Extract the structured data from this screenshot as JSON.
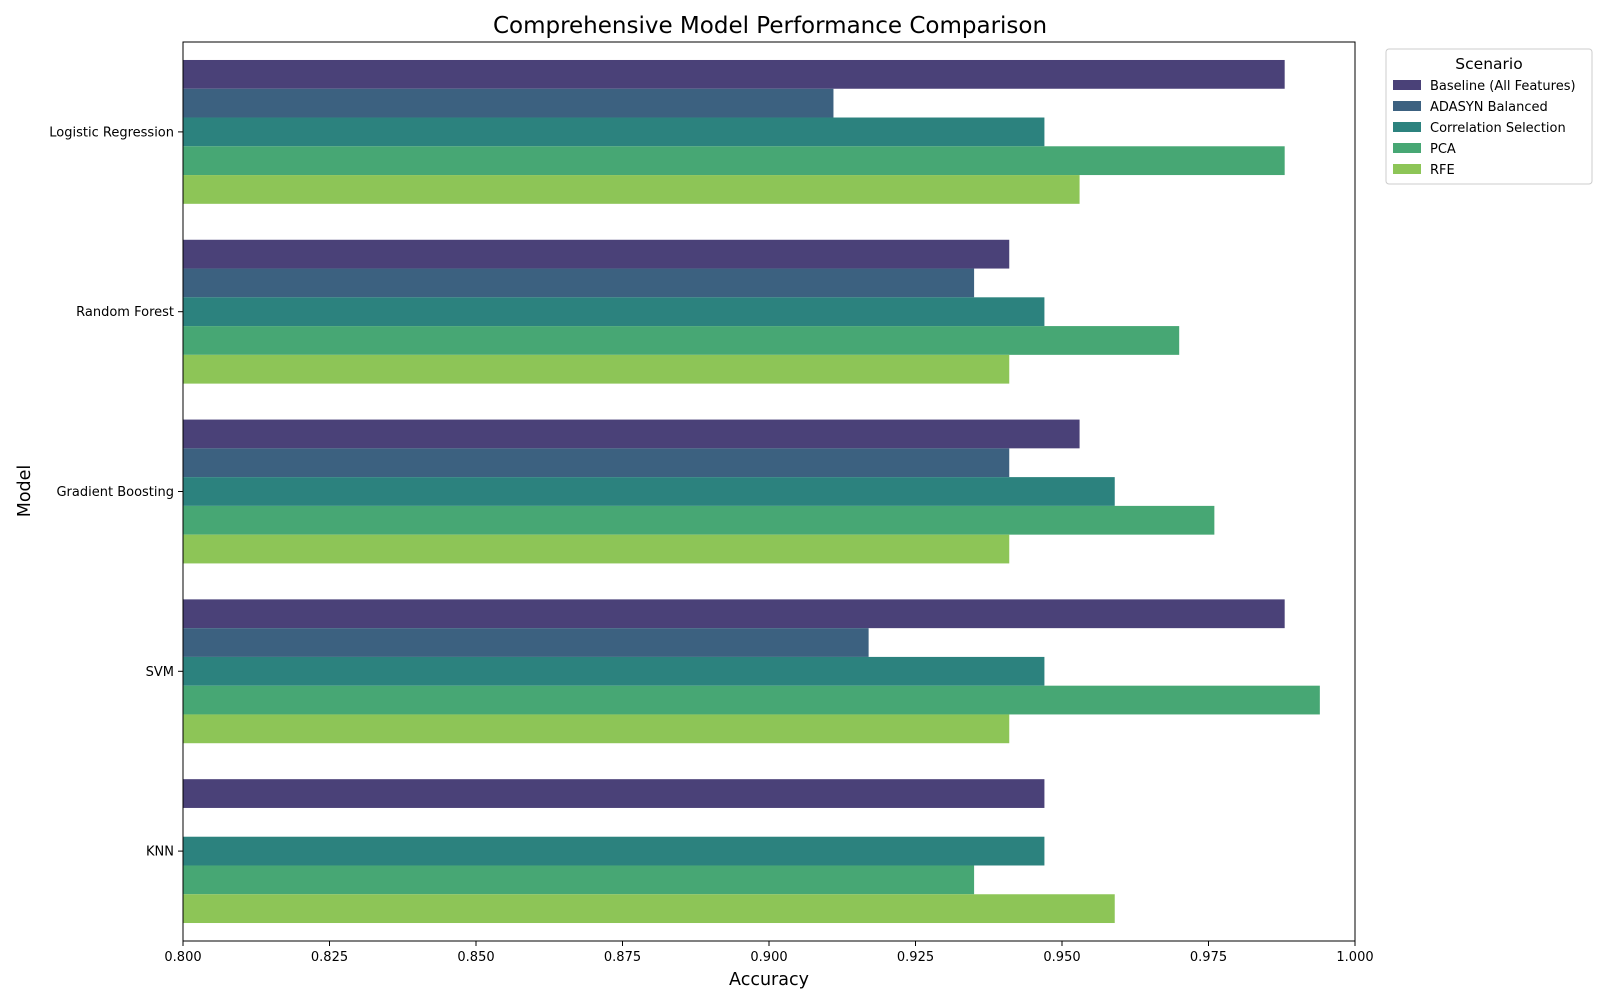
{
  "chart_data": {
    "type": "bar",
    "orientation": "horizontal",
    "title": "Comprehensive Model Performance Comparison",
    "xlabel": "Accuracy",
    "ylabel": "Model",
    "xlim": [
      0.8,
      1.0
    ],
    "xticks": [
      "0.800",
      "0.825",
      "0.850",
      "0.875",
      "0.900",
      "0.925",
      "0.950",
      "0.975",
      "1.000"
    ],
    "categories": [
      "Logistic Regression",
      "Random Forest",
      "Gradient Boosting",
      "SVM",
      "KNN"
    ],
    "legend": {
      "title": "Scenario",
      "placement": "outside upper right"
    },
    "grid": false,
    "series": [
      {
        "name": "Baseline (All Features)",
        "color": "#4a4178",
        "values": [
          0.988,
          0.941,
          0.953,
          0.988,
          0.947
        ]
      },
      {
        "name": "ADASYN Balanced",
        "color": "#3c6180",
        "values": [
          0.911,
          0.935,
          0.941,
          0.917,
          null
        ]
      },
      {
        "name": "Correlation Selection",
        "color": "#2c827e",
        "values": [
          0.947,
          0.947,
          0.959,
          0.947,
          0.947
        ]
      },
      {
        "name": "PCA",
        "color": "#47a774",
        "values": [
          0.988,
          0.97,
          0.976,
          0.994,
          0.935
        ]
      },
      {
        "name": "RFE",
        "color": "#8dc557",
        "values": [
          0.953,
          0.941,
          0.941,
          0.941,
          0.959
        ]
      }
    ]
  }
}
